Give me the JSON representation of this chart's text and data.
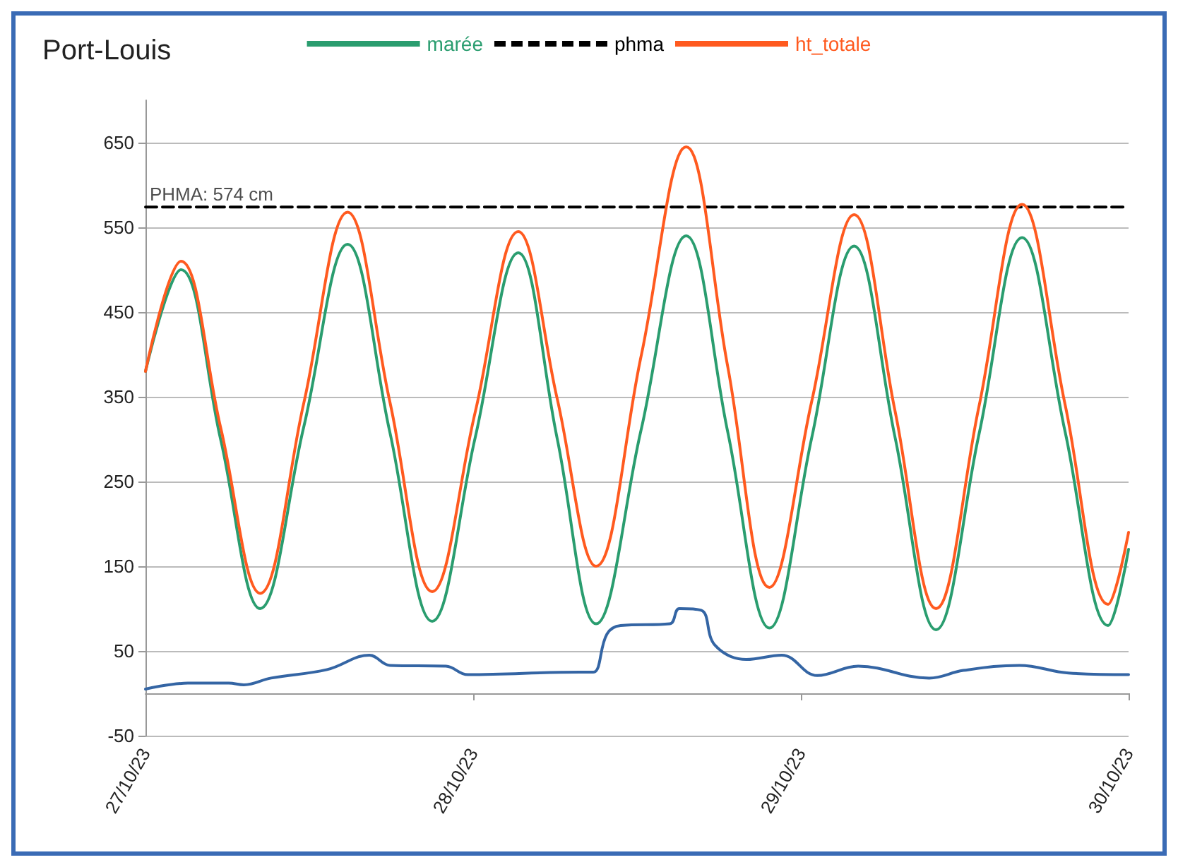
{
  "chart_data": {
    "type": "line",
    "title": "Port-Louis",
    "xlim": [
      "--10-27",
      "--10-30"
    ],
    "xticks": [
      {
        "value": "--10-27",
        "label": "27/10/23"
      },
      {
        "value": "--10-28",
        "label": "28/10/23"
      },
      {
        "value": "--10-29",
        "label": "29/10/23"
      },
      {
        "value": "--10-30",
        "label": "30/10/23"
      }
    ],
    "ylim": [
      -50,
      700
    ],
    "yticks": [
      -50,
      50,
      150,
      250,
      350,
      450,
      550,
      650
    ],
    "grid": "y",
    "legend": "top",
    "marker": "none",
    "line_style": "solid",
    "series": [
      {
        "name": "marée",
        "color": "#2a9d6f",
        "x": [
          "--10-27T00:00",
          "--10-27T02:36",
          "--10-27T05:30",
          "--10-27T08:24",
          "--10-27T11:36",
          "--10-27T14:48",
          "--10-27T17:54",
          "--10-27T21:00",
          "--10-28T00:09",
          "--10-28T03:18",
          "--10-28T06:09",
          "--10-28T09:00",
          "--10-28T12:18",
          "--10-28T15:36",
          "--10-28T18:39",
          "--10-28T21:42",
          "--10-29T00:48",
          "--10-29T03:54",
          "--10-29T06:54",
          "--10-29T09:54",
          "--10-29T13:03",
          "--10-29T16:12",
          "--10-29T19:21",
          "--10-29T22:30",
          "--10-30T00:00"
        ],
        "values": [
          380,
          500,
          300,
          100,
          315,
          530,
          308,
          85,
          302,
          520,
          301,
          82,
          311,
          540,
          308,
          77,
          302,
          528,
          302,
          75,
          306,
          538,
          309,
          80,
          170
        ]
      },
      {
        "name": "phma",
        "color": "#000000",
        "line_style": "dashed",
        "x": [
          "--10-27T00:00",
          "--10-30T00:00"
        ],
        "values": [
          574,
          574
        ]
      },
      {
        "name": "ht_totale",
        "color": "#ff5a1f",
        "x": [
          "--10-27T00:00",
          "--10-27T02:36",
          "--10-27T05:30",
          "--10-27T08:24",
          "--10-27T11:36",
          "--10-27T14:48",
          "--10-27T17:54",
          "--10-27T21:00",
          "--10-28T00:09",
          "--10-28T03:18",
          "--10-28T06:09",
          "--10-28T09:00",
          "--10-28T12:18",
          "--10-28T15:36",
          "--10-28T18:39",
          "--10-28T21:42",
          "--10-29T00:48",
          "--10-29T03:54",
          "--10-29T06:54",
          "--10-29T09:54",
          "--10-29T13:03",
          "--10-29T16:12",
          "--10-29T19:21",
          "--10-29T22:30",
          "--10-30T00:00"
        ],
        "values": [
          380,
          510,
          314,
          118,
          343,
          568,
          344,
          120,
          332,
          545,
          348,
          150,
          398,
          645,
          385,
          125,
          345,
          565,
          333,
          100,
          339,
          577,
          341,
          105,
          190
        ]
      },
      {
        "color": "#3465a4",
        "x": [
          "--10-27T00:00",
          "--10-27T03:06",
          "--10-27T06:06",
          "--10-27T07:12",
          "--10-27T09:12",
          "--10-27T13:18",
          "--10-27T16:24",
          "--10-27T17:54",
          "--10-27T22:00",
          "--10-27T23:36",
          "--10-28T07:48",
          "--10-28T08:48",
          "--10-28T09:48",
          "--10-28T10:48",
          "--10-28T14:24",
          "--10-28T15:06",
          "--10-28T16:42",
          "--10-28T17:42",
          "--10-28T20:00",
          "--10-28T22:36",
          "--10-29T01:12",
          "--10-29T04:12",
          "--10-29T09:24",
          "--10-29T11:54",
          "--10-29T16:00",
          "--10-29T19:36",
          "--10-30T00:00"
        ],
        "values": [
          5,
          12,
          12,
          10,
          18,
          28,
          45,
          33,
          32,
          22,
          25,
          25,
          70,
          80,
          82,
          100,
          98,
          57,
          40,
          45,
          21,
          32,
          18,
          27,
          33,
          24,
          22
        ]
      }
    ],
    "annotations": [
      {
        "text": "PHMA: 574 cm",
        "x": "--10-27",
        "y": 574
      }
    ]
  }
}
